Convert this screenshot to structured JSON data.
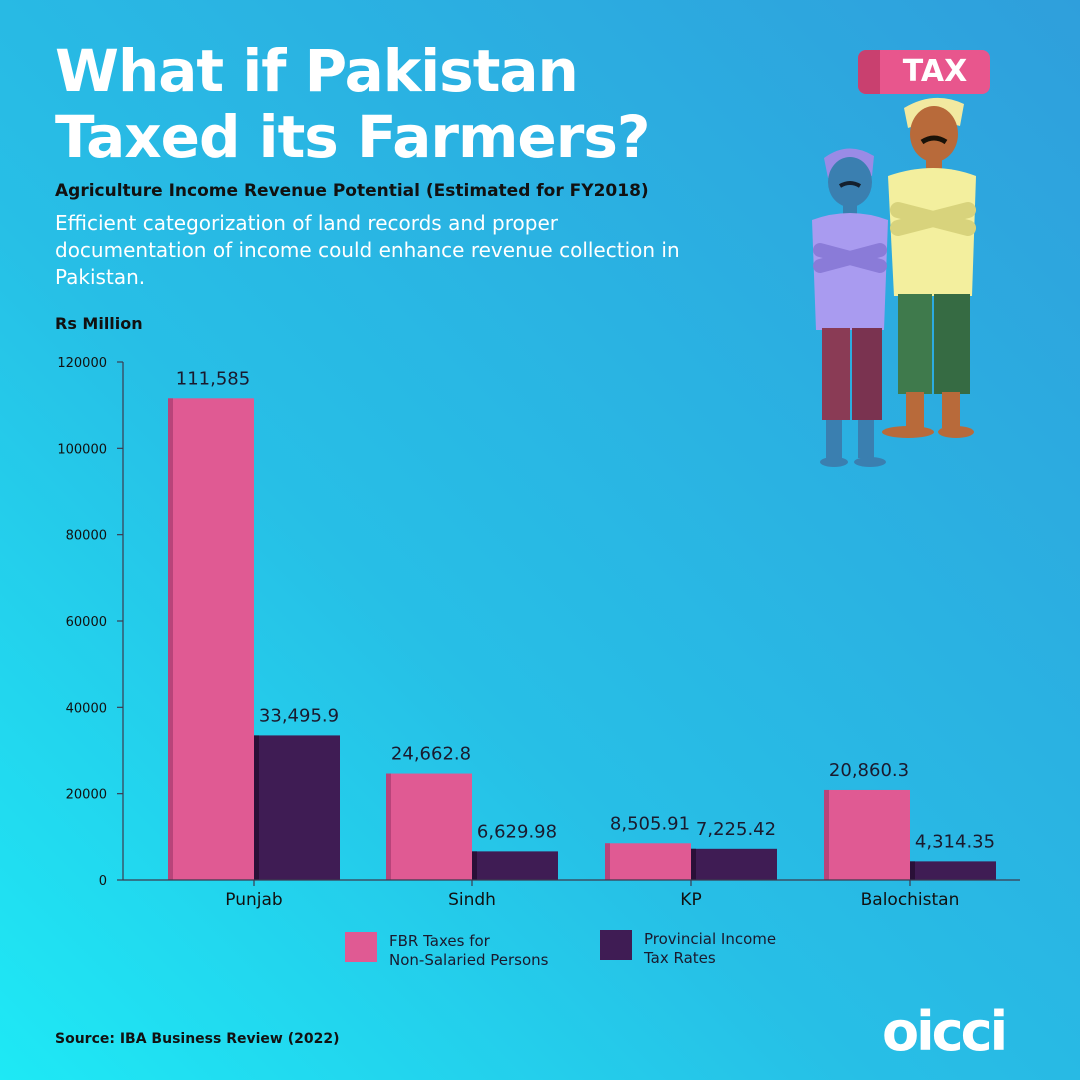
{
  "header": {
    "title_line1": "What if Pakistan",
    "title_line2": "Taxed its Farmers?",
    "subtitle": "Agriculture Income Revenue Potential (Estimated for FY2018)",
    "description": "Efficient categorization of land records and proper documentation of income could enhance revenue collection in Pakistan."
  },
  "illustration": {
    "badge_text": "TAX"
  },
  "footer": {
    "source": "Source: IBA Business Review (2022)",
    "logo_text": "OICCI"
  },
  "colors": {
    "fbr": "#e05a93",
    "fbr_shade": "#b8447a",
    "provincial": "#3f1c54",
    "provincial_shade": "#2a1038",
    "axis": "#3b3b4f"
  },
  "chart_data": {
    "type": "bar",
    "ylabel": "Rs Million",
    "ylim": [
      0,
      120000
    ],
    "yticks": [
      "0",
      "20000",
      "40000",
      "60000",
      "80000",
      "100000",
      "120000"
    ],
    "categories": [
      "Punjab",
      "Sindh",
      "KP",
      "Balochistan"
    ],
    "series": [
      {
        "name": "FBR Taxes for Non-Salaried Persons",
        "values": [
          111585,
          24662.8,
          8505.91,
          20860.3
        ],
        "labels": [
          "111,585",
          "24,662.8",
          "8,505.91",
          "20,860.3"
        ]
      },
      {
        "name": "Provincial Income Tax Rates",
        "values": [
          33495.9,
          6629.98,
          7225.42,
          4314.35
        ],
        "labels": [
          "33,495.9",
          "6,629.98",
          "7,225.42",
          "4,314.35"
        ]
      }
    ],
    "legend": {
      "position": "bottom",
      "lines": [
        [
          "FBR Taxes for",
          "Non-Salaried Persons"
        ],
        [
          "Provincial Income",
          "Tax Rates"
        ]
      ]
    }
  }
}
